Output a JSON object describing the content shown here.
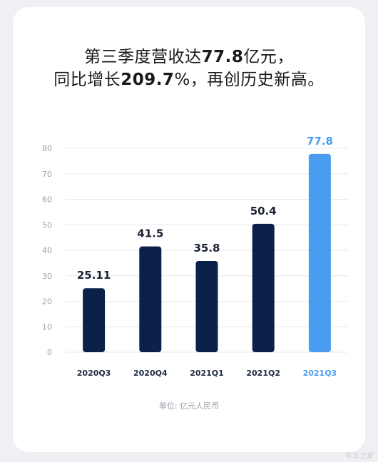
{
  "headline": {
    "line1_a": "第三季度营收达",
    "line1_b": "77.8",
    "line1_c": "亿元，",
    "line2_a": "同比增长",
    "line2_b": "209.7",
    "line2_c": "%，再创历史新高。"
  },
  "colors": {
    "bar_default": "#0c2149",
    "bar_highlight": "#4a9cf0",
    "grid": "#e6e8ec",
    "tick_text": "#9aa0a8"
  },
  "chart_data": {
    "type": "bar",
    "categories": [
      "2020Q3",
      "2020Q4",
      "2021Q1",
      "2021Q2",
      "2021Q3"
    ],
    "values": [
      25.11,
      41.5,
      35.8,
      50.4,
      77.8
    ],
    "value_labels": [
      "25.11",
      "41.5",
      "35.8",
      "50.4",
      "77.8"
    ],
    "highlight_index": 4,
    "ylim": [
      0,
      80
    ],
    "yticks": [
      0,
      10,
      20,
      30,
      40,
      50,
      60,
      70,
      80
    ],
    "grid": true
  },
  "footer": {
    "unit_note": "单位: 亿元人民币",
    "watermark": "牛车之家"
  }
}
